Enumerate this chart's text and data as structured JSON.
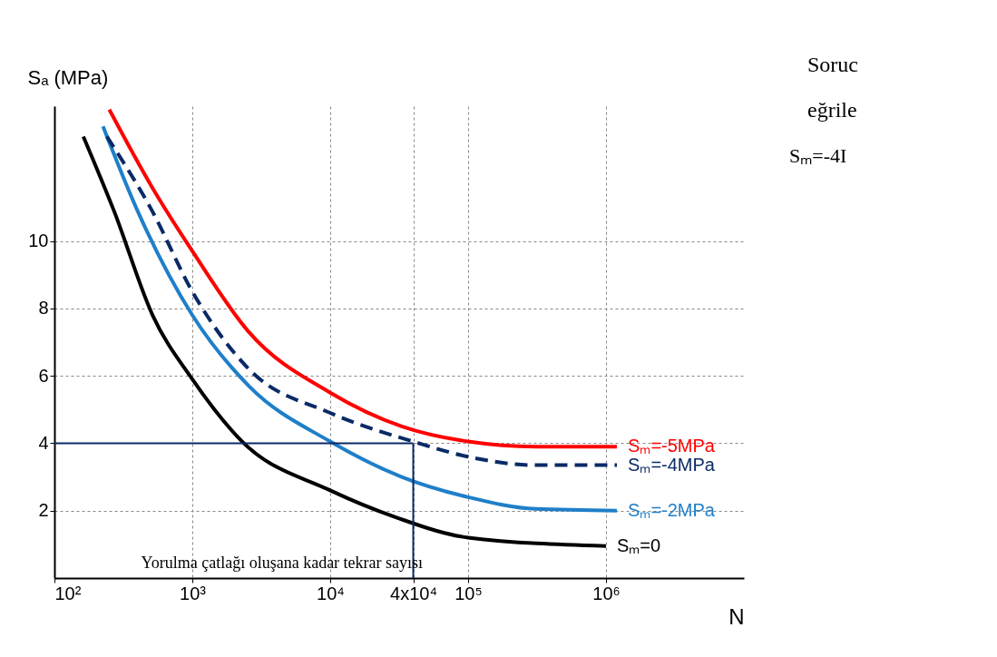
{
  "chart_data": {
    "type": "line",
    "xlabel": "N",
    "ylabel": "Sₐ (MPa)",
    "log": "x",
    "grid": true,
    "line_style": "solid",
    "marker": "none",
    "xlim": [
      100,
      10000000
    ],
    "ylim": [
      0,
      14
    ],
    "xticks": [
      {
        "value": 100,
        "label": "10²"
      },
      {
        "value": 1000,
        "label": "10³"
      },
      {
        "value": 10000,
        "label": "10⁴"
      },
      {
        "value": 40000,
        "label": "4x10⁴"
      },
      {
        "value": 100000,
        "label": "10⁵"
      },
      {
        "value": 1000000,
        "label": "10⁶"
      }
    ],
    "yticks": [
      2,
      4,
      6,
      8,
      10
    ],
    "series": [
      {
        "name": "Sₘ=0",
        "color": "#000000",
        "x": [
          162,
          270,
          515,
          1000,
          2300,
          10000,
          30000,
          100000,
          1000000
        ],
        "values": [
          13.1,
          10.9,
          7.8,
          5.9,
          4.05,
          2.6,
          1.8,
          1.2,
          0.95
        ]
      },
      {
        "name": "Sₘ=-2MPa",
        "color": "#1f7fc8",
        "x": [
          225,
          400,
          1000,
          2570,
          10000,
          33000,
          100000,
          310000,
          1200000
        ],
        "values": [
          13.4,
          10.9,
          7.8,
          5.7,
          4.05,
          3.0,
          2.4,
          2.05,
          2.0
        ]
      },
      {
        "name": "Sₘ=-4MPa",
        "color": "#0a2a66",
        "line_style": "dashed",
        "x": [
          240,
          510,
          1000,
          2570,
          10000,
          40000,
          100000,
          310000,
          1200000
        ],
        "values": [
          13.1,
          10.9,
          8.5,
          6.2,
          4.9,
          4.05,
          3.6,
          3.35,
          3.35
        ]
      },
      {
        "name": "Sₘ=-5MPa",
        "color": "#ff0000",
        "x": [
          250,
          510,
          1000,
          2570,
          10000,
          33000,
          100000,
          310000,
          1200000
        ],
        "values": [
          13.9,
          11.6,
          9.7,
          7.3,
          5.5,
          4.5,
          4.05,
          3.9,
          3.9
        ]
      }
    ],
    "ref_lines": [
      {
        "axis": "y",
        "value": 4,
        "color": "#0a2a66"
      },
      {
        "axis": "x",
        "value": 40000,
        "color": "#0a2a66"
      }
    ],
    "annotations": [
      "Yorulma çatlağı oluşana kadar tekrar sayısı",
      "Soruc",
      "eğrile",
      "Sₘ=-4I"
    ]
  }
}
